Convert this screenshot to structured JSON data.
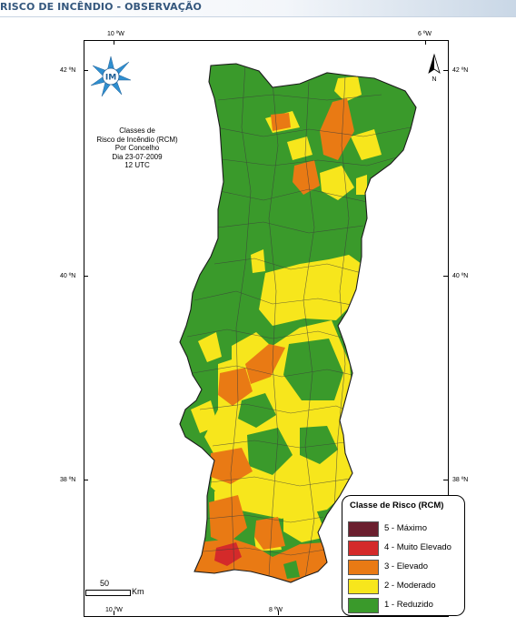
{
  "header": {
    "title": "RISCO DE INCÊNDIO - OBSERVAÇÃO"
  },
  "map_info": {
    "line1": "Classes de",
    "line2": "Risco de Incêndio (RCM)",
    "line3": "Por Concelho",
    "line4": "Dia 23-07-2009",
    "line5": "12 UTC"
  },
  "coords": {
    "top_left_lon": "10 ºW",
    "top_right_lon": "6 ºW",
    "bottom_left_lon": "10 ºW",
    "bottom_mid_lon": "8 ºW",
    "lat_42_left": "42 ºN",
    "lat_42_right": "42 ºN",
    "lat_40_left": "40 ºN",
    "lat_40_right": "40 ºN",
    "lat_38_left": "38 ºN",
    "lat_38_right": "38 ºN"
  },
  "north_arrow": {
    "label": "N",
    "icon": "north-arrow-icon"
  },
  "logo": {
    "icon": "im-logo-icon",
    "text": "IM"
  },
  "scale": {
    "value": "50",
    "unit": "Km"
  },
  "legend": {
    "title": "Classe de Risco (RCM)",
    "items": [
      {
        "label": "5 - Máximo",
        "color": "#6b1f2e"
      },
      {
        "label": "4 - Muito Elevado",
        "color": "#d42a2a"
      },
      {
        "label": "3 - Elevado",
        "color": "#e97a14"
      },
      {
        "label": "2 - Moderado",
        "color": "#f7e61c"
      },
      {
        "label": "1 - Reduzido",
        "color": "#3a9a2b"
      }
    ]
  }
}
